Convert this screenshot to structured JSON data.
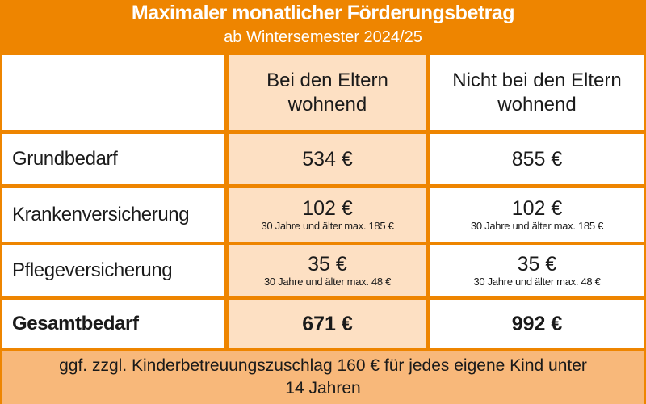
{
  "header": {
    "title": "Maximaler monatlicher Förderungsbetrag",
    "subtitle": "ab Wintersemester 2024/25"
  },
  "table": {
    "columns": [
      "Bei den Eltern wohnend",
      "Nicht bei den Eltern wohnend"
    ],
    "rows": [
      {
        "label": "Grundbedarf",
        "cells": [
          {
            "amount": "534 €"
          },
          {
            "amount": "855 €"
          }
        ]
      },
      {
        "label": "Krankenversicherung",
        "cells": [
          {
            "amount": "102 €",
            "note": "30 Jahre und älter max. 185 €"
          },
          {
            "amount": "102 €",
            "note": "30 Jahre und älter max. 185 €"
          }
        ]
      },
      {
        "label": "Pflegeversicherung",
        "cells": [
          {
            "amount": "35 €",
            "note": "30 Jahre und älter max. 48 €"
          },
          {
            "amount": "35 €",
            "note": "30 Jahre und älter max. 48 €"
          }
        ]
      },
      {
        "label": "Gesamtbedarf",
        "cells": [
          {
            "amount": "671 €"
          },
          {
            "amount": "992 €"
          }
        ]
      }
    ]
  },
  "footer": {
    "text": "ggf. zzgl. Kinderbetreuungszuschlag 160 € für jedes eigene Kind unter 14 Jahren"
  }
}
